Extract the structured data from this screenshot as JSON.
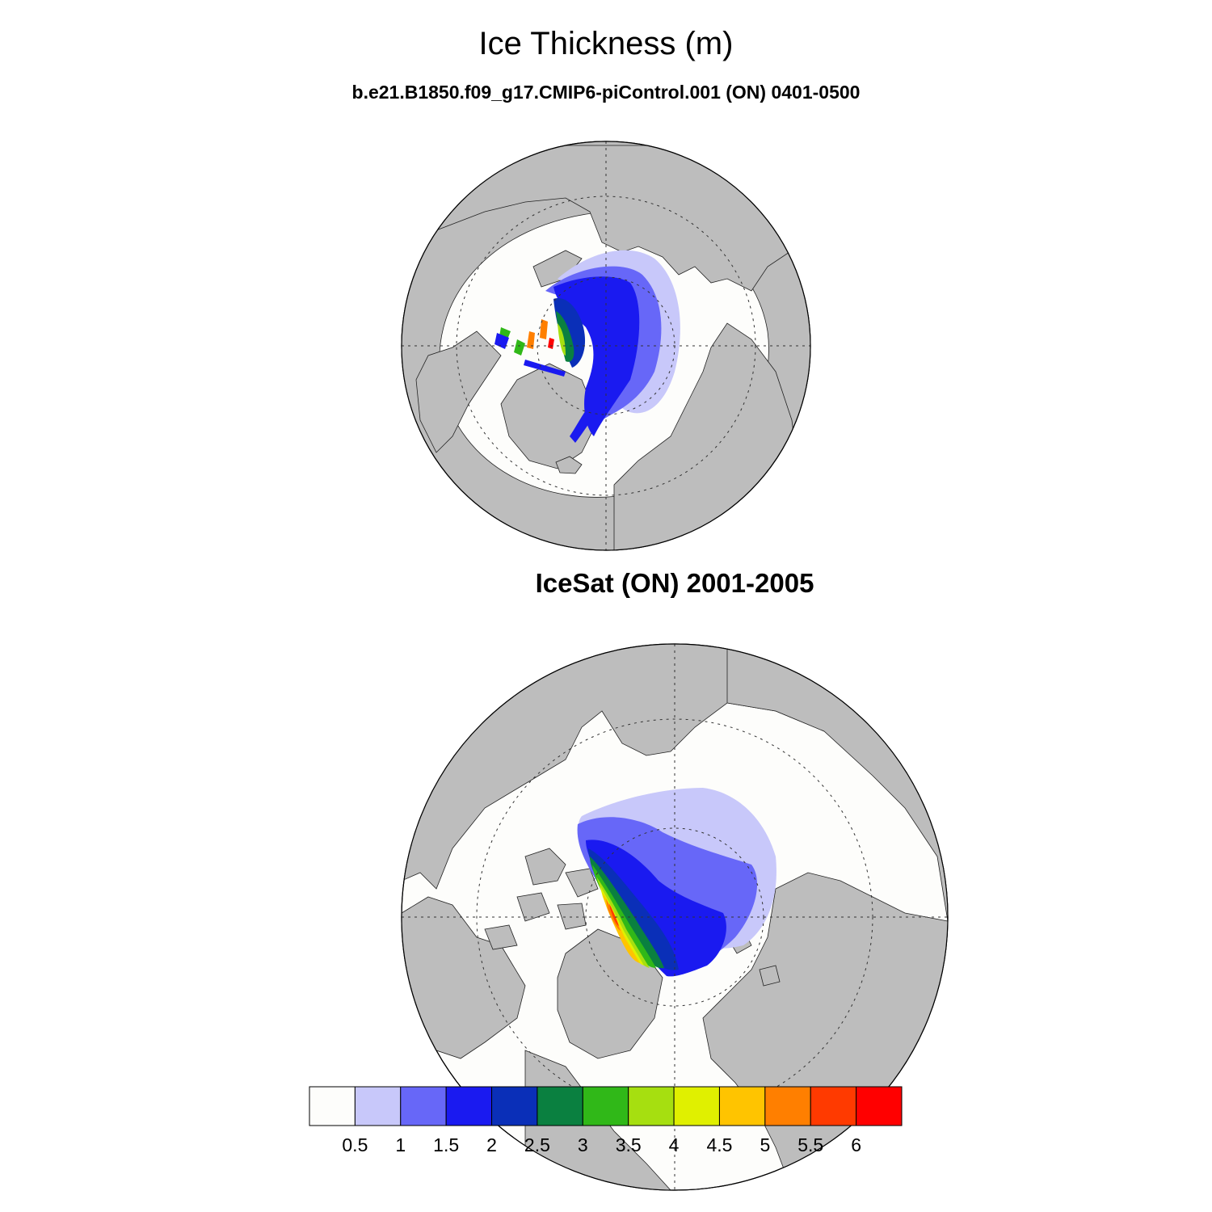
{
  "title": "Ice Thickness (m)",
  "subtitle": "b.e21.B1850.f09_g17.CMIP6-piControl.001 (ON) 0401-0500",
  "panel2_title": "IceSat (ON) 2001-2005",
  "colorbar": {
    "labels": [
      "0.5",
      "1",
      "1.5",
      "2",
      "2.5",
      "3",
      "3.5",
      "4",
      "4.5",
      "5",
      "5.5",
      "6"
    ],
    "colors": [
      "#fdfdfb",
      "#c8c8fa",
      "#6767f8",
      "#1a1af0",
      "#0a2fb8",
      "#0a8040",
      "#30b818",
      "#a6df10",
      "#e0f000",
      "#ffc400",
      "#ff7f00",
      "#ff3a00",
      "#ff0000"
    ]
  },
  "colors": {
    "land": "#bdbdbd",
    "ocean": "#fdfdfb"
  }
}
